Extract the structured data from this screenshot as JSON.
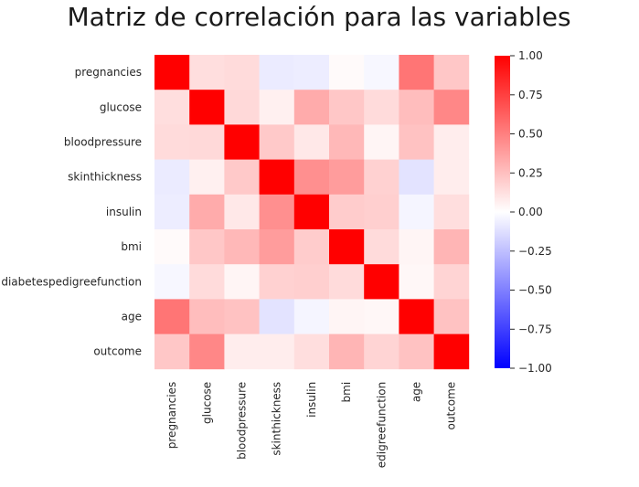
{
  "chart_data": {
    "type": "heatmap",
    "title": "Matriz de correlación para las variables",
    "row_labels": [
      "pregnancies",
      "glucose",
      "bloodpressure",
      "skinthickness",
      "insulin",
      "bmi",
      "diabetespedigreefunction",
      "age",
      "outcome"
    ],
    "col_labels": [
      "pregnancies",
      "glucose",
      "bloodpressure",
      "skinthickness",
      "insulin",
      "bmi",
      "edigreefunction",
      "age",
      "outcome"
    ],
    "values": [
      [
        1.0,
        0.13,
        0.14,
        -0.08,
        -0.07,
        0.02,
        -0.03,
        0.54,
        0.22
      ],
      [
        0.13,
        1.0,
        0.15,
        0.06,
        0.33,
        0.22,
        0.14,
        0.26,
        0.47
      ],
      [
        0.14,
        0.15,
        1.0,
        0.21,
        0.09,
        0.28,
        0.04,
        0.24,
        0.07
      ],
      [
        -0.08,
        0.06,
        0.21,
        1.0,
        0.44,
        0.39,
        0.18,
        -0.11,
        0.07
      ],
      [
        -0.07,
        0.33,
        0.09,
        0.44,
        1.0,
        0.2,
        0.19,
        -0.04,
        0.13
      ],
      [
        0.02,
        0.22,
        0.28,
        0.39,
        0.2,
        1.0,
        0.14,
        0.04,
        0.29
      ],
      [
        -0.03,
        0.14,
        0.04,
        0.18,
        0.19,
        0.14,
        1.0,
        0.03,
        0.17
      ],
      [
        0.54,
        0.26,
        0.24,
        -0.11,
        -0.04,
        0.04,
        0.03,
        1.0,
        0.24
      ],
      [
        0.22,
        0.47,
        0.07,
        0.07,
        0.13,
        0.29,
        0.17,
        0.24,
        1.0
      ]
    ],
    "vmin": -1.0,
    "vmax": 1.0,
    "colormap": "bwr",
    "colorbar_ticks": [
      "1.00",
      "0.75",
      "0.50",
      "0.25",
      "0.00",
      "−0.25",
      "−0.50",
      "−0.75",
      "−1.00"
    ],
    "colors": {
      "low": "#0000ff",
      "mid": "#ffffff",
      "high": "#ff0000"
    }
  }
}
